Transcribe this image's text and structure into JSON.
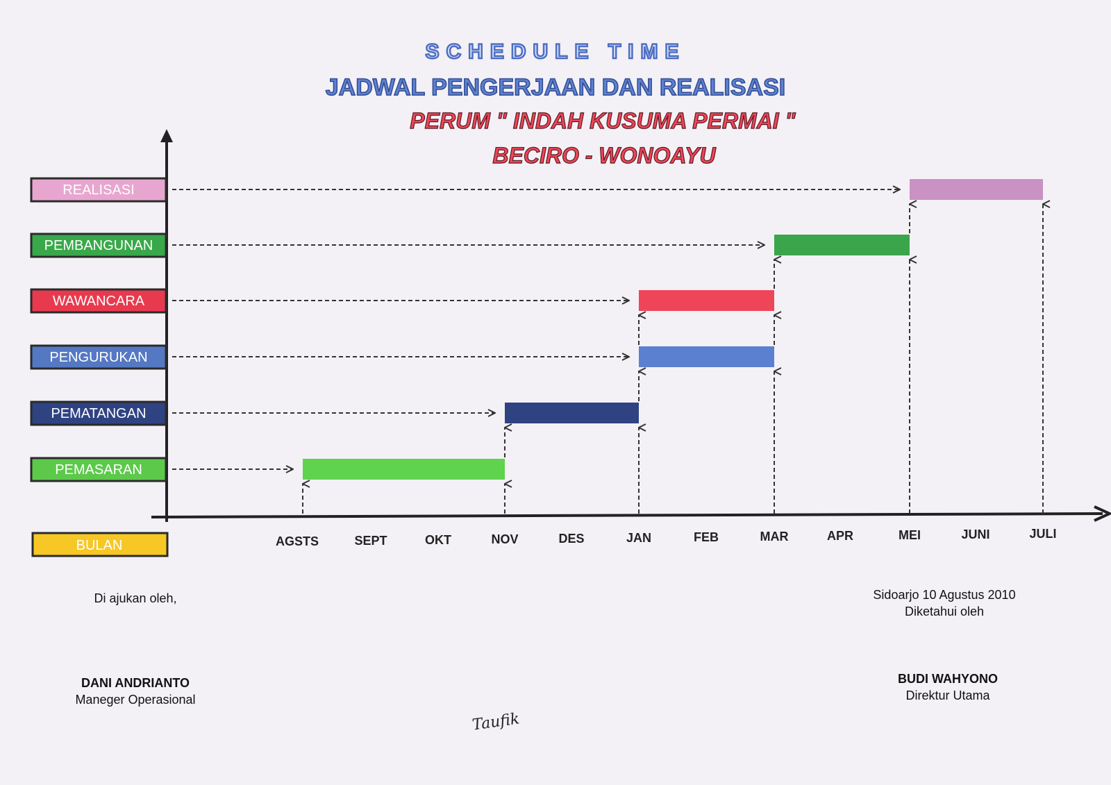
{
  "chart_data": {
    "type": "gantt",
    "title": "SCHEDULE TIME",
    "subtitle": "JADWAL PENGERJAAN DAN REALISASI",
    "project": "PERUM \" INDAH KUSUMA PERMAI \"",
    "location": "BECIRO - WONOAYU",
    "axis_label": "BULAN",
    "months": [
      "AGSTS",
      "SEPT",
      "OKT",
      "NOV",
      "DES",
      "JAN",
      "FEB",
      "MAR",
      "APR",
      "MEI",
      "JUNI",
      "JULI"
    ],
    "tasks": [
      {
        "name": "REALISASI",
        "start": "MEI",
        "end": "JULI",
        "color": "#c991c4",
        "label_color": "#e7a6cf"
      },
      {
        "name": "PEMBANGUNAN",
        "start": "MAR",
        "end": "MEI",
        "color": "#3aa54a",
        "label_color": "#39a84a"
      },
      {
        "name": "WAWANCARA",
        "start": "JAN",
        "end": "MAR",
        "color": "#ee4658",
        "label_color": "#e83a4e"
      },
      {
        "name": "PENGURUKAN",
        "start": "JAN",
        "end": "MAR",
        "color": "#5b80cf",
        "label_color": "#5478c2"
      },
      {
        "name": "PEMATANGAN",
        "start": "NOV",
        "end": "JAN",
        "color": "#2f4383",
        "label_color": "#2f4383"
      },
      {
        "name": "PEMASARAN",
        "start": "AGSTS",
        "end": "NOV",
        "color": "#5fd24e",
        "label_color": "#5cc94a"
      }
    ],
    "bulan_color": "#f7c825"
  },
  "footer": {
    "left_intro": "Di ajukan oleh,",
    "left_name": "DANI ANDRIANTO",
    "left_role": "Maneger Operasional",
    "right_place_date": "Sidoarjo 10 Agustus 2010",
    "right_intro": "Diketahui oleh",
    "right_name": "BUDI WAHYONO",
    "right_role": "Direktur Utama",
    "handwriting": "Taufik"
  }
}
